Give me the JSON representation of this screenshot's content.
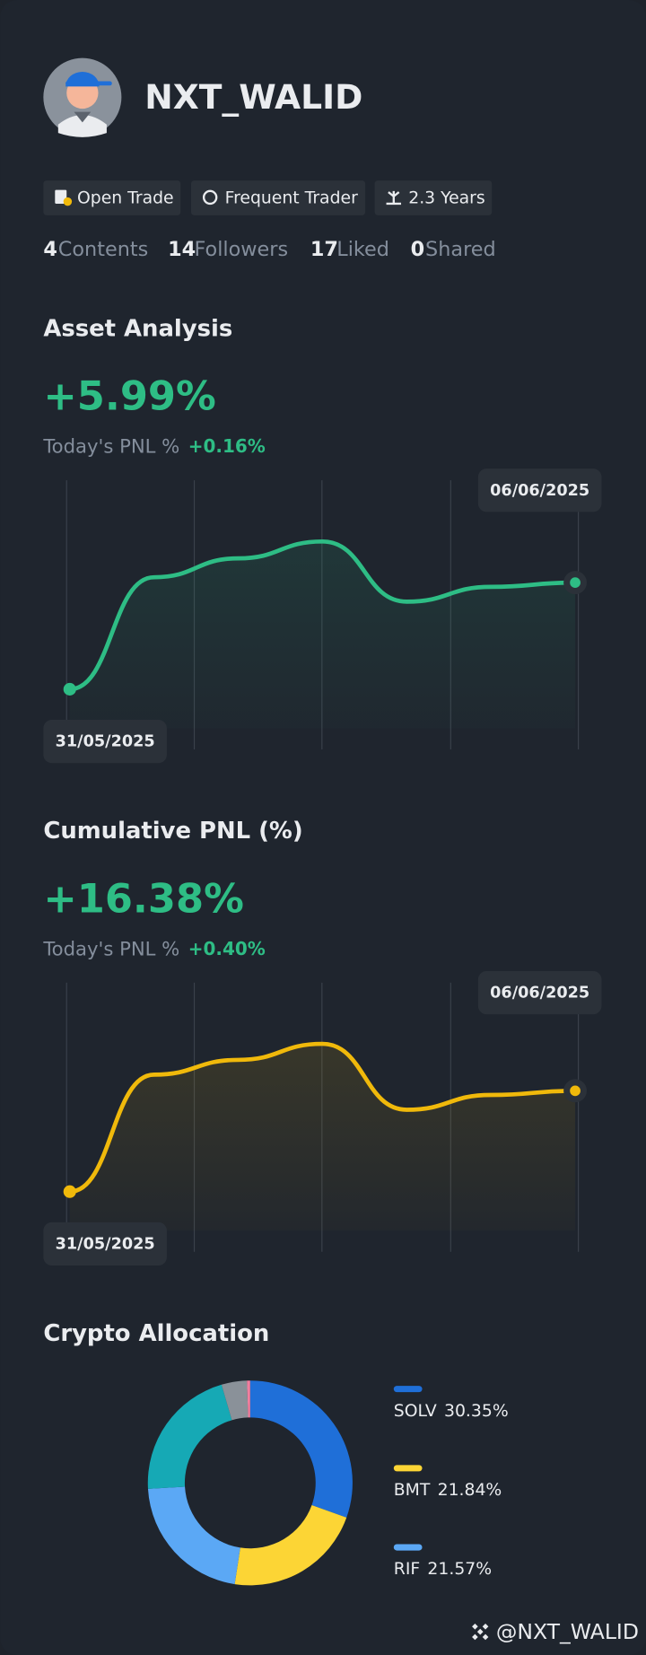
{
  "profile": {
    "username": "NXT_WALID",
    "badges": [
      "Open Trade",
      "Frequent Trader",
      "2.3 Years"
    ],
    "stats": [
      {
        "count": 4,
        "label": "Contents"
      },
      {
        "count": 14,
        "label": "Followers"
      },
      {
        "count": 17,
        "label": "Liked"
      },
      {
        "count": 0,
        "label": "Shared"
      }
    ]
  },
  "chart_data": [
    {
      "type": "line",
      "title": "Asset Analysis",
      "headline": "+5.99%",
      "subtitle": "Today's PNL %",
      "today_change": "+0.16%",
      "categories": [
        "31/05/2025",
        null,
        null,
        null,
        null,
        null,
        "06/06/2025"
      ],
      "series": [
        {
          "color": "#2ebd85",
          "values": [
            0,
            6.29,
            7.35,
            8.3,
            4.92,
            5.75,
            5.99
          ]
        }
      ]
    },
    {
      "type": "line",
      "title": "Cumulative PNL (%)",
      "headline": "+16.38%",
      "subtitle": "Today's PNL %",
      "today_change": "+0.40%",
      "categories": [
        "31/05/2025",
        null,
        null,
        null,
        null,
        null,
        "06/06/2025"
      ],
      "series": [
        {
          "color": "#f0b90b",
          "values": [
            0,
            19.0,
            21.4,
            24.0,
            13.3,
            15.7,
            16.38
          ]
        }
      ]
    },
    {
      "type": "pie",
      "title": "Crypto Allocation",
      "donut": true,
      "categories": [
        "SOLV",
        "BMT",
        "RIF",
        null,
        null,
        null
      ],
      "values": [
        30.35,
        21.84,
        21.57,
        21.3,
        4.0,
        0.5
      ],
      "value_labels": [
        "30.35%",
        "21.84%",
        "21.57%",
        null,
        null,
        null
      ],
      "colors": [
        "#1f6fd8",
        "#fcd535",
        "#5ba8f5",
        "#16a9b5",
        "#8a9199",
        "#f07fa0"
      ]
    }
  ],
  "footer": {
    "handle": "@NXT_WALID"
  }
}
